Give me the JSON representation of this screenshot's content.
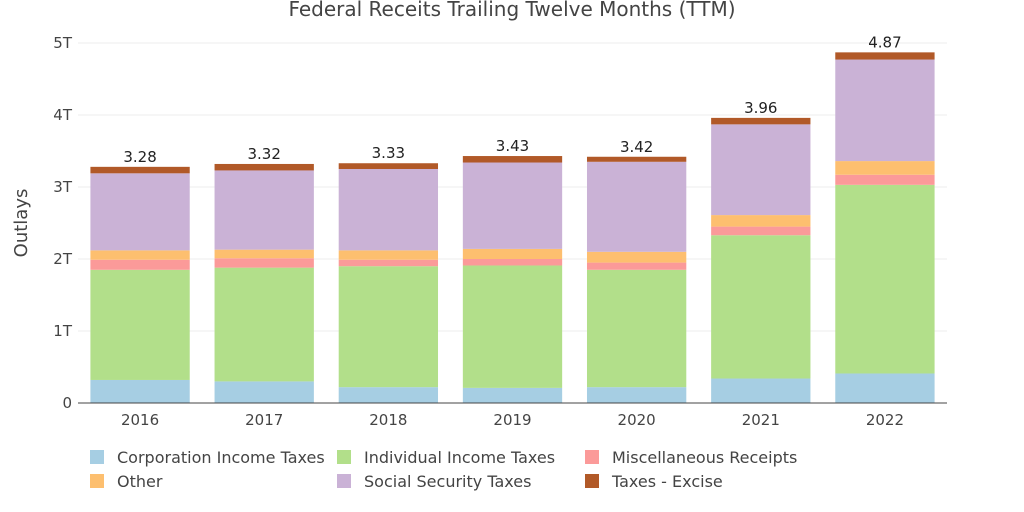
{
  "chart_data": {
    "type": "bar",
    "stacked": true,
    "title": "Federal Receits Trailing Twelve Months (TTM)",
    "xlabel": "",
    "ylabel": "Outlays",
    "ylim": [
      0,
      5
    ],
    "y_ticks": [
      0,
      1,
      2,
      3,
      4,
      5
    ],
    "y_tick_labels": [
      "0",
      "1T",
      "2T",
      "3T",
      "4T",
      "5T"
    ],
    "grid": true,
    "legend_position": "bottom",
    "categories": [
      "2016",
      "2017",
      "2018",
      "2019",
      "2020",
      "2021",
      "2022"
    ],
    "totals": [
      3.28,
      3.32,
      3.33,
      3.43,
      3.42,
      3.96,
      4.87
    ],
    "total_labels": [
      "3.28",
      "3.32",
      "3.33",
      "3.43",
      "3.42",
      "3.96",
      "4.87"
    ],
    "series": [
      {
        "name": "Corporation Income Taxes",
        "color": "#a6cee3",
        "values": [
          0.32,
          0.3,
          0.22,
          0.21,
          0.22,
          0.34,
          0.41
        ]
      },
      {
        "name": "Individual Income Taxes",
        "color": "#b2df8a",
        "values": [
          1.53,
          1.58,
          1.68,
          1.7,
          1.63,
          1.99,
          2.62
        ]
      },
      {
        "name": "Miscellaneous Receipts",
        "color": "#fb9a99",
        "values": [
          0.14,
          0.13,
          0.09,
          0.09,
          0.1,
          0.12,
          0.14
        ]
      },
      {
        "name": "Other",
        "color": "#fdbf6f",
        "values": [
          0.13,
          0.12,
          0.13,
          0.14,
          0.15,
          0.16,
          0.19
        ]
      },
      {
        "name": "Social Security Taxes",
        "color": "#cab2d6",
        "values": [
          1.07,
          1.1,
          1.13,
          1.2,
          1.25,
          1.26,
          1.41
        ]
      },
      {
        "name": "Taxes - Excise",
        "color": "#b15928",
        "values": [
          0.09,
          0.09,
          0.08,
          0.09,
          0.07,
          0.09,
          0.1
        ]
      }
    ]
  }
}
